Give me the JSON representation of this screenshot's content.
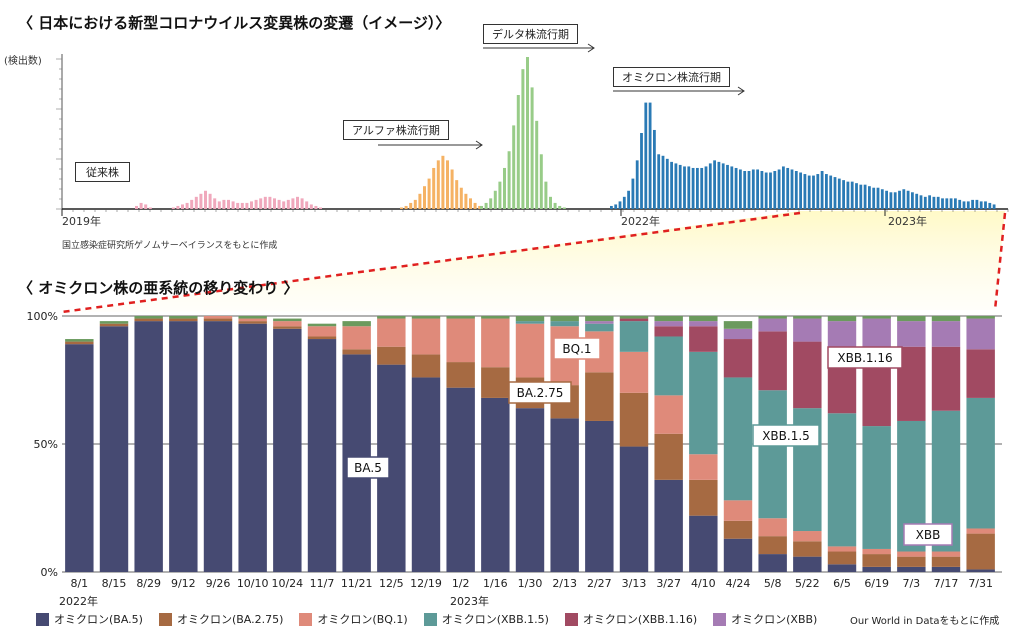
{
  "top": {
    "title": "〈 日本における新型コロナウイルス変異株の変遷（イメージ）〉",
    "yaxis_label": "(検出数)",
    "source": "国立感染症研究所ゲノムサーベイランスをもとに作成",
    "year_labels": [
      "2019年",
      "2022年",
      "2023年"
    ],
    "periods": [
      "従来株",
      "アルファ株流行期",
      "デルタ株流行期",
      "オミクロン株流行期"
    ]
  },
  "bottom": {
    "title": "〈 オミクロン株の亜系統の移り変わり 〉",
    "source": "Our World in Dataをもとに作成",
    "year_labels": [
      "2022年",
      "2023年"
    ],
    "inline_labels": [
      "BA.5",
      "BA.2.75",
      "BQ.1",
      "XBB.1.5",
      "XBB.1.16",
      "XBB"
    ]
  },
  "colors": {
    "BA5": "#464a72",
    "BA275": "#a66a42",
    "BQ1": "#df8a7a",
    "XBB15": "#5d9a98",
    "XBB116": "#a14a62",
    "XBB": "#a57bb4",
    "other_green": "#6b9a5e",
    "other_red": "#b03a3a",
    "conventional": "#f0a8bc",
    "alpha": "#f5b264",
    "delta": "#98cc88",
    "omicron": "#2a7ab5",
    "dashed_line": "#e02020"
  },
  "chart_data": [
    {
      "type": "bar",
      "title": "日本における新型コロナウイルス変異株の変遷（イメージ）",
      "ylabel": "(検出数)",
      "x_ticks": [
        "2019年",
        "2022年",
        "2023年"
      ],
      "series": [
        {
          "name": "従来株",
          "values": [
            2,
            4,
            3,
            1,
            0,
            0,
            0,
            0,
            1,
            2,
            3,
            4,
            6,
            8,
            10,
            12,
            10,
            7,
            5,
            6,
            6,
            5,
            4,
            4,
            4,
            5,
            6,
            7,
            8,
            8,
            7,
            6,
            5,
            6,
            7,
            8,
            7,
            5,
            3,
            2,
            1
          ]
        },
        {
          "name": "アルファ株流行期",
          "values": [
            1,
            2,
            4,
            6,
            10,
            15,
            20,
            27,
            32,
            35,
            32,
            26,
            19,
            14,
            10,
            7,
            4,
            2
          ]
        },
        {
          "name": "デルタ株流行期",
          "values": [
            2,
            4,
            7,
            12,
            18,
            27,
            38,
            55,
            75,
            92,
            100,
            80,
            58,
            36,
            18,
            8,
            4,
            2,
            1
          ]
        },
        {
          "name": "オミクロン株流行期",
          "values": [
            2,
            3,
            5,
            8,
            12,
            20,
            32,
            50,
            70,
            70,
            52,
            36,
            35,
            33,
            31,
            30,
            29,
            28,
            28,
            27,
            27,
            27,
            28,
            30,
            32,
            31,
            30,
            29,
            28,
            27,
            26,
            25,
            25,
            26,
            26,
            25,
            24,
            24,
            25,
            26,
            28,
            27,
            26,
            25,
            24,
            23,
            22,
            22,
            23,
            25,
            23,
            22,
            21,
            20,
            19,
            18,
            18,
            17,
            16,
            16,
            15,
            14,
            14,
            13,
            12,
            11,
            11,
            12,
            13,
            12,
            11,
            10,
            9,
            8,
            9,
            8,
            8,
            7,
            7,
            7,
            7,
            6,
            5,
            5,
            6,
            6,
            5,
            5,
            4,
            3
          ]
        }
      ]
    },
    {
      "type": "bar",
      "stacked": true,
      "title": "オミクロン株の亜系統の移り変わり",
      "categories": [
        "8/1",
        "8/15",
        "8/29",
        "9/12",
        "9/26",
        "10/10",
        "10/24",
        "11/7",
        "11/21",
        "12/5",
        "12/19",
        "1/2",
        "1/16",
        "1/30",
        "2/13",
        "2/27",
        "3/13",
        "3/27",
        "4/10",
        "4/24",
        "5/8",
        "5/22",
        "6/5",
        "6/19",
        "7/3",
        "7/17",
        "7/31"
      ],
      "y_ticks": [
        "0%",
        "50%",
        "100%"
      ],
      "ylim": [
        0,
        100
      ],
      "series": [
        {
          "name": "オミクロン(BA.5)",
          "values": [
            89,
            96,
            98,
            98,
            98,
            97,
            95,
            91,
            85,
            81,
            76,
            72,
            68,
            64,
            60,
            59,
            49,
            36,
            22,
            13,
            7,
            6,
            3,
            2,
            2,
            2,
            1
          ]
        },
        {
          "name": "オミクロン(BA.2.75)",
          "values": [
            1,
            1,
            1,
            1,
            1,
            1,
            1,
            1,
            2,
            7,
            9,
            10,
            12,
            12,
            13,
            19,
            21,
            18,
            14,
            7,
            7,
            6,
            5,
            5,
            4,
            4,
            14
          ]
        },
        {
          "name": "オミクロン(BQ.1)",
          "values": [
            0,
            0,
            0,
            0,
            1,
            1,
            2,
            4,
            9,
            11,
            14,
            17,
            19,
            21,
            23,
            16,
            16,
            15,
            10,
            8,
            7,
            4,
            2,
            2,
            2,
            2,
            2
          ]
        },
        {
          "name": "オミクロン(XBB.1.5)",
          "values": [
            0,
            0,
            0,
            0,
            0,
            0,
            0,
            0,
            0,
            0,
            0,
            0,
            0,
            1,
            2,
            3,
            12,
            23,
            40,
            48,
            50,
            48,
            52,
            48,
            51,
            55,
            51
          ]
        },
        {
          "name": "オミクロン(XBB.1.16)",
          "values": [
            0,
            0,
            0,
            0,
            0,
            0,
            0,
            0,
            0,
            0,
            0,
            0,
            0,
            0,
            0,
            0,
            1,
            4,
            10,
            15,
            23,
            26,
            26,
            30,
            29,
            25,
            19
          ]
        },
        {
          "name": "オミクロン(XBB)",
          "values": [
            0,
            0,
            0,
            0,
            0,
            0,
            0,
            0,
            0,
            0,
            0,
            0,
            0,
            0,
            0,
            1,
            0,
            2,
            2,
            4,
            5,
            9,
            10,
            12,
            10,
            10,
            12
          ]
        },
        {
          "name": "",
          "values": [
            1,
            1,
            1,
            1,
            0,
            1,
            1,
            1,
            2,
            1,
            1,
            1,
            1,
            2,
            2,
            2,
            1,
            2,
            2,
            3,
            1,
            1,
            2,
            1,
            2,
            2,
            1
          ]
        }
      ]
    }
  ]
}
